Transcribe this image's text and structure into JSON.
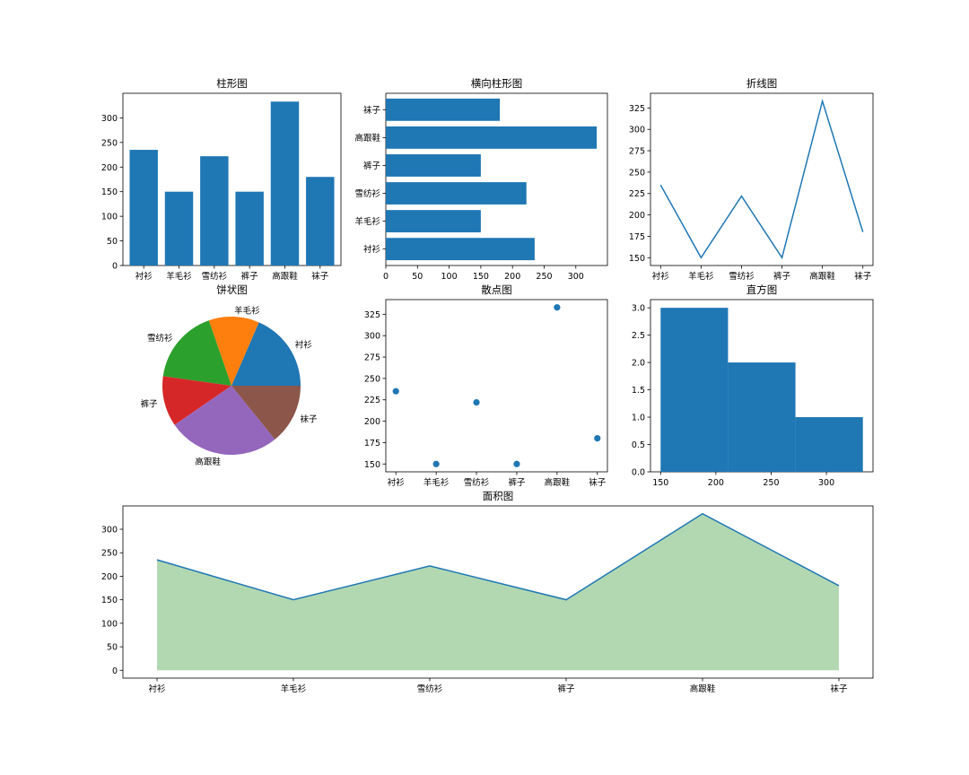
{
  "chart_data": [
    {
      "type": "bar",
      "title": "柱形图",
      "categories": [
        "衬衫",
        "羊毛衫",
        "雪纺衫",
        "裤子",
        "高跟鞋",
        "袜子"
      ],
      "values": [
        235,
        150,
        222,
        150,
        333,
        180
      ],
      "ylim": [
        0,
        349.9
      ],
      "yticks": [
        0,
        50,
        100,
        150,
        200,
        250,
        300
      ],
      "color": "#1f77b4"
    },
    {
      "type": "bar",
      "orientation": "horizontal",
      "title": "横向柱形图",
      "categories": [
        "衬衫",
        "羊毛衫",
        "雪纺衫",
        "裤子",
        "高跟鞋",
        "袜子"
      ],
      "values": [
        235,
        150,
        222,
        150,
        333,
        180
      ],
      "xlim": [
        0,
        349.9
      ],
      "xticks": [
        0,
        50,
        100,
        150,
        200,
        250,
        300
      ],
      "color": "#1f77b4"
    },
    {
      "type": "line",
      "title": "折线图",
      "categories": [
        "衬衫",
        "羊毛衫",
        "雪纺衫",
        "裤子",
        "高跟鞋",
        "袜子"
      ],
      "values": [
        235,
        150,
        222,
        150,
        333,
        180
      ],
      "ylim": [
        140.85,
        342.15
      ],
      "yticks": [
        150,
        175,
        200,
        225,
        250,
        275,
        300,
        325
      ],
      "color": "#1f77b4"
    },
    {
      "type": "pie",
      "title": "饼状图",
      "labels": [
        "衬衫",
        "羊毛衫",
        "雪纺衫",
        "裤子",
        "高跟鞋",
        "袜子"
      ],
      "values": [
        235,
        150,
        222,
        150,
        333,
        180
      ],
      "colors": [
        "#1f77b4",
        "#ff7f0e",
        "#2ca02c",
        "#d62728",
        "#9467bd",
        "#8c564b"
      ]
    },
    {
      "type": "scatter",
      "title": "散点图",
      "categories": [
        "衬衫",
        "羊毛衫",
        "雪纺衫",
        "裤子",
        "高跟鞋",
        "袜子"
      ],
      "values": [
        235,
        150,
        222,
        150,
        333,
        180
      ],
      "ylim": [
        140.85,
        342.15
      ],
      "yticks": [
        150,
        175,
        200,
        225,
        250,
        275,
        300,
        325
      ],
      "color": "#1f77b4"
    },
    {
      "type": "histogram",
      "title": "直方图",
      "bins": [
        [
          150,
          211
        ],
        [
          211,
          272
        ],
        [
          272,
          333
        ]
      ],
      "counts": [
        3,
        2,
        1
      ],
      "xlim": [
        140.85,
        342.15
      ],
      "xticks": [
        150,
        200,
        250,
        300
      ],
      "ylim": [
        0,
        3.15
      ],
      "yticks": [
        "0.0",
        "0.5",
        "1.0",
        "1.5",
        "2.0",
        "2.5",
        "3.0"
      ],
      "color": "#1f77b4"
    },
    {
      "type": "area",
      "title": "面积图",
      "categories": [
        "衬衫",
        "羊毛衫",
        "雪纺衫",
        "裤子",
        "高跟鞋",
        "袜子"
      ],
      "values": [
        235,
        150,
        222,
        150,
        333,
        180
      ],
      "ylim": [
        -16.65,
        349.65
      ],
      "yticks": [
        0,
        50,
        100,
        150,
        200,
        250,
        300
      ],
      "line_color": "#1f77b4",
      "fill_color": "#b2d8b2"
    }
  ]
}
